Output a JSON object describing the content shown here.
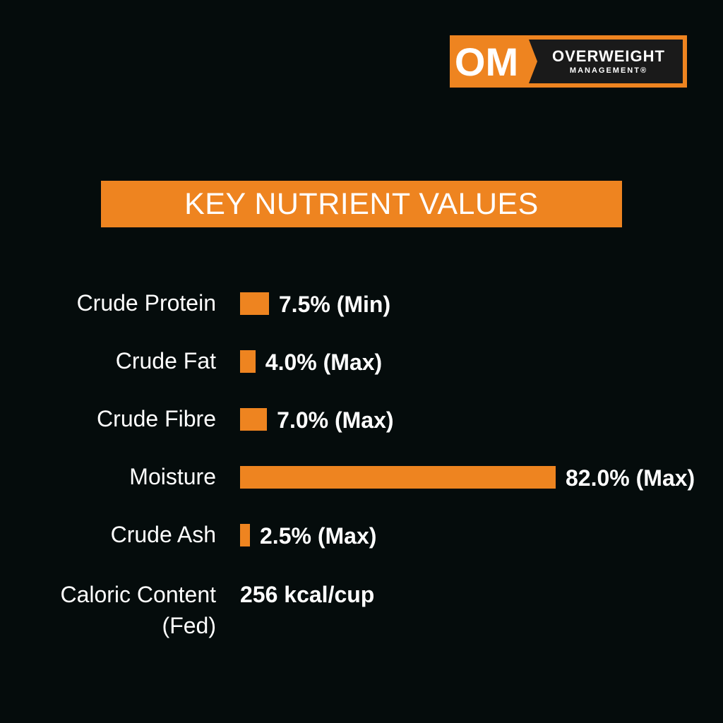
{
  "logo": {
    "mark": "OM",
    "line1": "OVERWEIGHT",
    "line2": "MANAGEMENT®"
  },
  "colors": {
    "background": "#050c0c",
    "accent": "#ee8420",
    "text": "#ffffff"
  },
  "chart_data": {
    "type": "bar",
    "orientation": "horizontal",
    "title": "KEY NUTRIENT VALUES",
    "unit": "%",
    "categories": [
      "Crude Protein",
      "Crude Fat",
      "Crude Fibre",
      "Moisture",
      "Crude Ash"
    ],
    "values": [
      7.5,
      4.0,
      7.0,
      82.0,
      2.5
    ],
    "value_labels": [
      "7.5% (Min)",
      "4.0% (Max)",
      "7.0% (Max)",
      "82.0% (Max)",
      "2.5% (Max)"
    ],
    "xlim": [
      0,
      82.0
    ]
  },
  "caloric": {
    "label_line1": "Caloric Content",
    "label_line2": "(Fed)",
    "value": "256 kcal/cup"
  }
}
